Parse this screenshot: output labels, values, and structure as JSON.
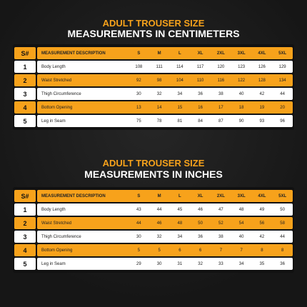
{
  "tables": [
    {
      "title": "ADULT TROUSER SIZE",
      "subtitle": "MEASUREMENTS IN CENTIMETERS",
      "columns": [
        "S#",
        "MEASUREMENT DESCRIPTION",
        "S",
        "M",
        "L",
        "XL",
        "2XL",
        "3XL",
        "4XL",
        "5XL"
      ],
      "rows": [
        [
          1,
          "Body Length",
          108,
          111,
          114,
          117,
          120,
          123,
          126,
          129
        ],
        [
          2,
          "Waist Stretched",
          92,
          98,
          104,
          110,
          116,
          122,
          128,
          134
        ],
        [
          3,
          "Thigh Circumference",
          30,
          32,
          34,
          36,
          38,
          40,
          42,
          44
        ],
        [
          4,
          "Bottom Opening",
          13,
          14,
          15,
          16,
          17,
          18,
          19,
          20
        ],
        [
          5,
          "Leg in Seam",
          75,
          78,
          81,
          84,
          87,
          90,
          93,
          96
        ]
      ]
    },
    {
      "title": "ADULT TROUSER SIZE",
      "subtitle": "MEASUREMENTS IN INCHES",
      "columns": [
        "S#",
        "MEASUREMENT DESCRIPTION",
        "S",
        "M",
        "L",
        "XL",
        "2XL",
        "3XL",
        "4XL",
        "5XL"
      ],
      "rows": [
        [
          1,
          "Body Length",
          43,
          44,
          45,
          46,
          47,
          48,
          49,
          50
        ],
        [
          2,
          "Waist Stretched",
          44,
          46,
          48,
          50,
          52,
          54,
          56,
          58
        ],
        [
          3,
          "Thigh Circumference",
          30,
          32,
          34,
          36,
          38,
          40,
          42,
          44
        ],
        [
          4,
          "Bottom Opening",
          5,
          5,
          6,
          6,
          7,
          7,
          8,
          8
        ],
        [
          5,
          "Leg in Seam",
          29,
          30,
          31,
          32,
          33,
          34,
          35,
          36
        ]
      ]
    }
  ]
}
